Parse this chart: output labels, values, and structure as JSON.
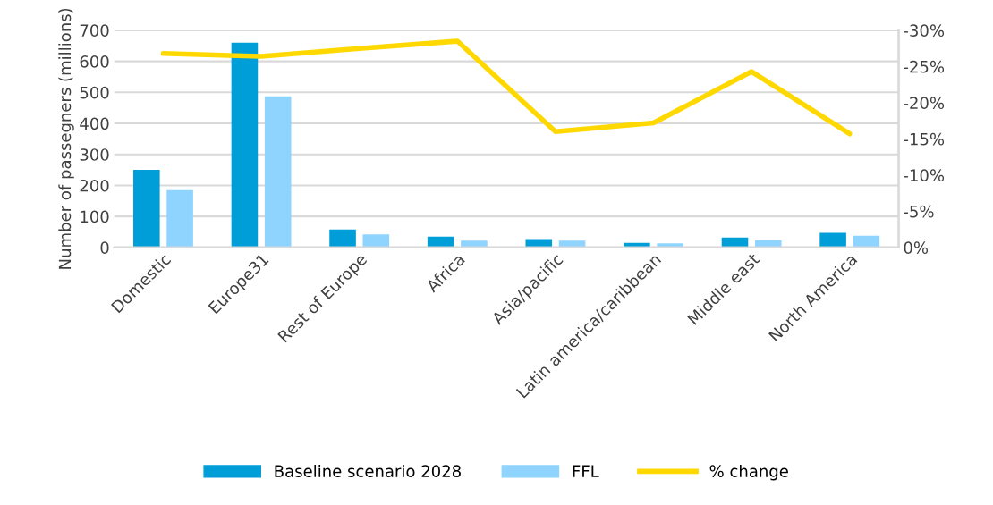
{
  "chart_data": {
    "type": "bar",
    "ylabel": "Number of passegners (millions)",
    "categories": [
      "Domestic",
      "Europe31",
      "Rest of Europe",
      "Africa",
      "Asia/pacific",
      "Latin america/caribbean",
      "Middle east",
      "North America"
    ],
    "series": [
      {
        "name": "Baseline scenario 2028",
        "color": "#009ed8",
        "values": [
          250,
          660,
          58,
          35,
          27,
          15,
          32,
          47
        ]
      },
      {
        "name": "FFL",
        "color": "#8fd3ff",
        "values": [
          185,
          487,
          42,
          22,
          22,
          13,
          23,
          38
        ]
      },
      {
        "name": "% change",
        "type": "line",
        "axis": "y2",
        "color": "#ffd800",
        "values": [
          -26.8,
          -26.4,
          -27.5,
          -28.5,
          -16.0,
          -17.2,
          -24.3,
          -15.7
        ]
      }
    ],
    "ylim": [
      0,
      700
    ],
    "yticks": [
      0,
      100,
      200,
      300,
      400,
      500,
      600,
      700
    ],
    "y2lim": [
      0,
      -30
    ],
    "y2ticks": [
      {
        "value": 0,
        "label": "0%"
      },
      {
        "value": -5,
        "label": "-5%"
      },
      {
        "value": -10,
        "label": "-10%"
      },
      {
        "value": -15,
        "label": "-15%"
      },
      {
        "value": -20,
        "label": "-20%"
      },
      {
        "value": -25,
        "label": "-25%"
      },
      {
        "value": -30,
        "label": "-30%"
      }
    ],
    "grid": "y",
    "legend": "bottom",
    "marker": "none"
  }
}
